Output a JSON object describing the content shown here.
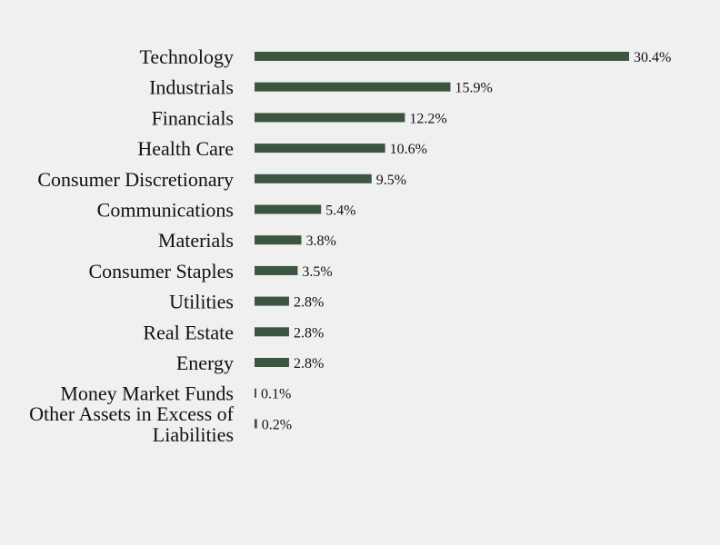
{
  "chart_data": {
    "type": "bar",
    "orientation": "horizontal",
    "categories": [
      "Technology",
      "Industrials",
      "Financials",
      "Health Care",
      "Consumer Discretionary",
      "Communications",
      "Materials",
      "Consumer Staples",
      "Utilities",
      "Real Estate",
      "Energy",
      "Money Market Funds",
      "Other Assets in Excess of Liabilities"
    ],
    "values": [
      30.4,
      15.9,
      12.2,
      10.6,
      9.5,
      5.4,
      3.8,
      3.5,
      2.8,
      2.8,
      2.8,
      0.1,
      0.2
    ],
    "value_labels": [
      "30.4%",
      "15.9%",
      "12.2%",
      "10.6%",
      "9.5%",
      "5.4%",
      "3.8%",
      "3.5%",
      "2.8%",
      "2.8%",
      "2.8%",
      "0.1%",
      "0.2%"
    ],
    "title": "",
    "xlabel": "",
    "ylabel": "",
    "grid": false,
    "legend": "none",
    "bar_color": "#3b5540",
    "background": "#f0f0f0"
  }
}
